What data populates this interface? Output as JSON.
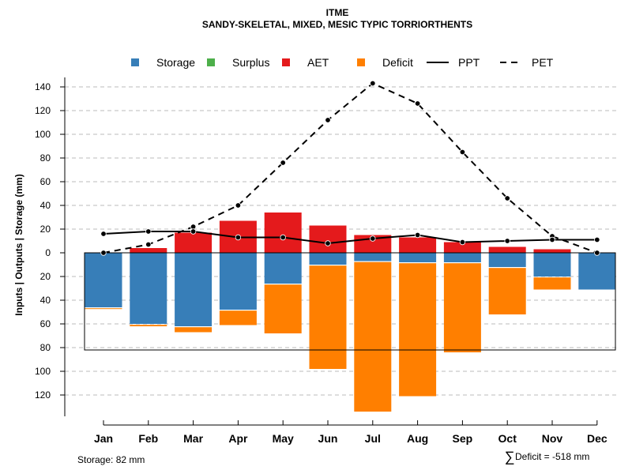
{
  "chart_data": {
    "type": "bar",
    "title": "ITME",
    "subtitle": "SANDY-SKELETAL, MIXED, MESIC TYPIC TORRIORTHENTS",
    "ylabel": "Inputs | Outputs | Storage    (mm)",
    "ylim": [
      -138,
      150
    ],
    "y_ticks_positive": [
      0,
      20,
      40,
      60,
      80,
      100,
      120,
      140
    ],
    "y_ticks_negative": [
      20,
      40,
      60,
      80,
      100,
      120
    ],
    "tick_labels": {
      "0": "0",
      "20": "20",
      "40": "40",
      "60": "60",
      "80": "80",
      "100": "100",
      "120": "120",
      "140": "140"
    },
    "categories": [
      "Jan",
      "Feb",
      "Mar",
      "Apr",
      "May",
      "Jun",
      "Jul",
      "Aug",
      "Sep",
      "Oct",
      "Nov",
      "Dec"
    ],
    "series": [
      {
        "name": "Storage",
        "color": "#377EB8",
        "kind": "bar-below",
        "values": [
          46,
          60,
          62,
          48,
          26,
          10,
          7,
          8,
          8,
          12,
          20,
          31
        ]
      },
      {
        "name": "Surplus",
        "color": "#4DAF4A",
        "kind": "bar-above",
        "values": [
          0,
          0,
          0,
          0,
          0,
          0,
          0,
          0,
          0,
          0,
          0,
          0
        ]
      },
      {
        "name": "AET",
        "color": "#E41A1C",
        "kind": "bar-above",
        "values": [
          0,
          4,
          17,
          27,
          34,
          23,
          15,
          13,
          9,
          5,
          3,
          0
        ]
      },
      {
        "name": "Deficit",
        "color": "#FF7F00",
        "kind": "bar-below-stacked",
        "values": [
          1,
          2,
          5,
          13,
          42,
          88,
          127,
          113,
          76,
          40,
          11,
          0
        ]
      },
      {
        "name": "PPT",
        "color": "#000000",
        "kind": "line-solid",
        "values": [
          16,
          18,
          18,
          13,
          13,
          8,
          12,
          15,
          9,
          10,
          11,
          11
        ]
      },
      {
        "name": "PET",
        "color": "#000000",
        "kind": "line-dashed",
        "values": [
          0,
          7,
          22,
          40,
          76,
          112,
          143,
          126,
          85,
          46,
          14,
          0
        ]
      }
    ],
    "storage_capacity": 82,
    "grid": true,
    "legend_position": "top"
  },
  "footer": {
    "storage_label": "Storage: 82 mm",
    "deficit_symbol": "∑",
    "deficit_label": "Deficit = -518 mm"
  }
}
